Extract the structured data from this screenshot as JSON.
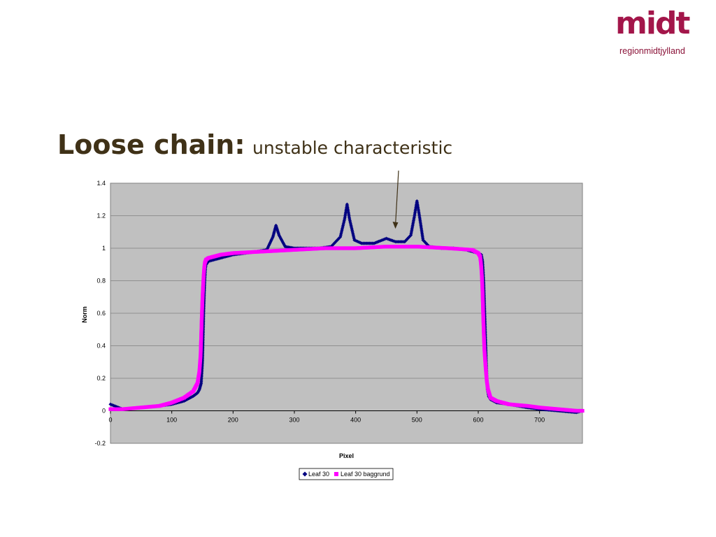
{
  "slide": {
    "title_main": "Loose chain:",
    "title_sub": "unstable characteristic"
  },
  "logo": {
    "word": "midt",
    "subtitle": "regionmidtjylland",
    "color": "#a3164a"
  },
  "chart_data": {
    "type": "scatter",
    "title": "",
    "xlabel": "Pixel",
    "ylabel": "Norm",
    "xlim": [
      0,
      770
    ],
    "ylim": [
      -0.2,
      1.4
    ],
    "x_ticks": [
      "0",
      "100",
      "200",
      "300",
      "400",
      "500",
      "600",
      "700"
    ],
    "y_ticks": [
      "-0.2",
      "0",
      "0.2",
      "0.4",
      "0.6",
      "0.8",
      "1",
      "1.2",
      "1.4"
    ],
    "grid": true,
    "plot_background": "#c0c0c0",
    "legend_position": "bottom",
    "annotation": {
      "type": "arrow",
      "points_to": [
        458,
        1.12
      ]
    },
    "series": [
      {
        "name": "Leaf 30",
        "marker": "diamond",
        "color": "#000080",
        "x": [
          0,
          20,
          50,
          80,
          100,
          120,
          135,
          142,
          145,
          148,
          150,
          151,
          152,
          153,
          154,
          155,
          156,
          158,
          160,
          170,
          180,
          200,
          220,
          240,
          255,
          265,
          270,
          275,
          285,
          300,
          320,
          340,
          360,
          375,
          382,
          386,
          390,
          398,
          410,
          430,
          450,
          465,
          480,
          490,
          496,
          500,
          504,
          510,
          520,
          540,
          560,
          580,
          600,
          605,
          607,
          608,
          609,
          610,
          611,
          612,
          613,
          614,
          615,
          617,
          620,
          630,
          650,
          680,
          700,
          730,
          760,
          770
        ],
        "y": [
          0.04,
          0.01,
          0.02,
          0.03,
          0.04,
          0.06,
          0.09,
          0.11,
          0.13,
          0.17,
          0.3,
          0.45,
          0.6,
          0.72,
          0.82,
          0.88,
          0.9,
          0.91,
          0.92,
          0.93,
          0.94,
          0.96,
          0.97,
          0.98,
          0.99,
          1.07,
          1.14,
          1.08,
          1.01,
          1.0,
          1.0,
          1.0,
          1.01,
          1.07,
          1.18,
          1.27,
          1.18,
          1.05,
          1.03,
          1.03,
          1.06,
          1.04,
          1.04,
          1.08,
          1.2,
          1.29,
          1.2,
          1.05,
          1.01,
          1.0,
          1.0,
          0.99,
          0.97,
          0.96,
          0.92,
          0.86,
          0.78,
          0.66,
          0.55,
          0.42,
          0.3,
          0.2,
          0.13,
          0.09,
          0.07,
          0.05,
          0.04,
          0.02,
          0.01,
          0.0,
          -0.01,
          0.0
        ]
      },
      {
        "name": "Leaf 30 baggrund",
        "marker": "square",
        "color": "#ff00ff",
        "x": [
          0,
          20,
          50,
          80,
          100,
          120,
          135,
          142,
          145,
          147,
          148,
          149,
          150,
          151,
          152,
          153,
          154,
          156,
          160,
          170,
          180,
          200,
          250,
          300,
          350,
          400,
          450,
          500,
          550,
          590,
          600,
          603,
          604,
          605,
          606,
          607,
          608,
          609,
          610,
          612,
          614,
          616,
          620,
          630,
          650,
          680,
          700,
          730,
          760,
          770
        ],
        "y": [
          0.01,
          0.01,
          0.02,
          0.03,
          0.05,
          0.08,
          0.12,
          0.17,
          0.24,
          0.34,
          0.46,
          0.58,
          0.68,
          0.76,
          0.83,
          0.88,
          0.91,
          0.93,
          0.94,
          0.95,
          0.96,
          0.97,
          0.98,
          0.99,
          1.0,
          1.0,
          1.01,
          1.01,
          1.0,
          0.99,
          0.97,
          0.95,
          0.92,
          0.88,
          0.82,
          0.73,
          0.6,
          0.48,
          0.38,
          0.27,
          0.18,
          0.13,
          0.08,
          0.06,
          0.04,
          0.03,
          0.02,
          0.01,
          0.0,
          0.0
        ]
      }
    ]
  }
}
